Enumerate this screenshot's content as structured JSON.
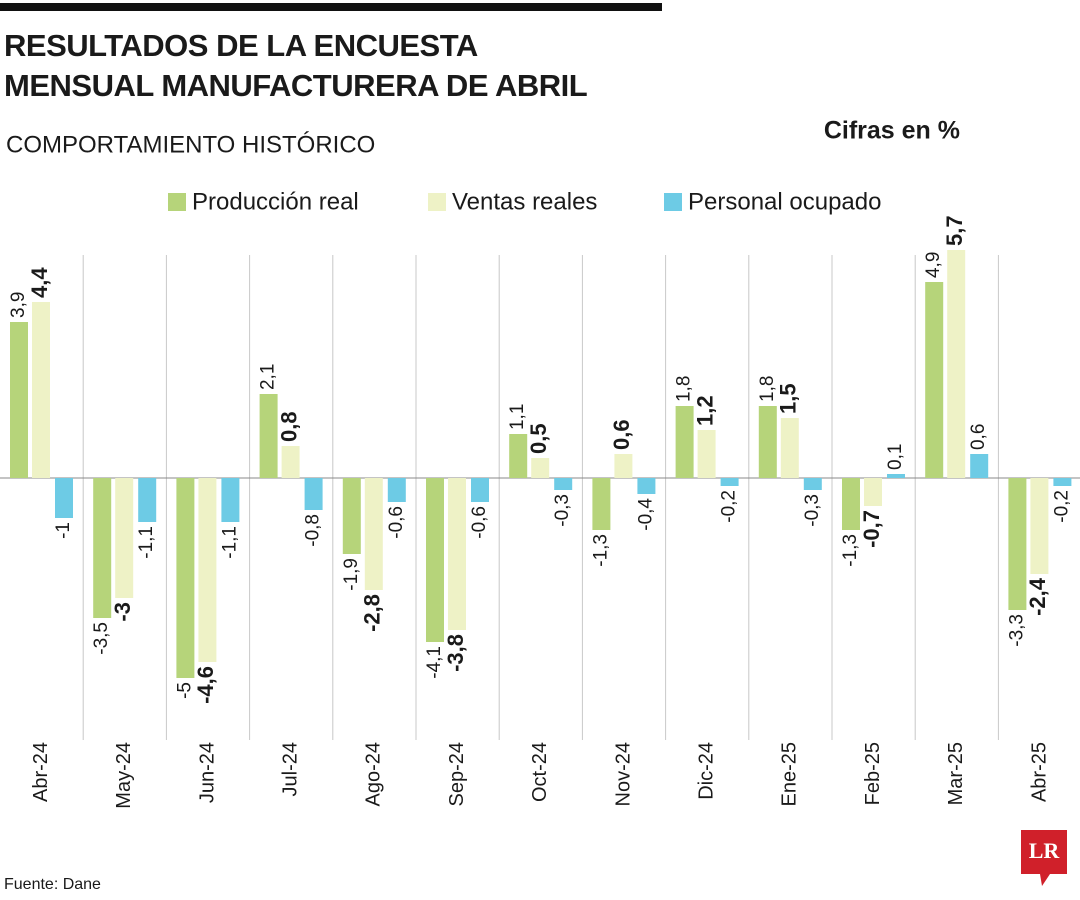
{
  "chart_data": {
    "type": "bar",
    "title": [
      "RESULTADOS DE LA ENCUESTA",
      "MENSUAL MANUFACTURERA DE ABRIL"
    ],
    "subtitle": "COMPORTAMIENTO HISTÓRICO",
    "unit_note": "Cifras en %",
    "source": "Fuente: Dane",
    "logo": "LR",
    "categories": [
      "Abr-24",
      "May-24",
      "Jun-24",
      "Jul-24",
      "Ago-24",
      "Sep-24",
      "Oct-24",
      "Nov-24",
      "Dic-24",
      "Ene-25",
      "Feb-25",
      "Mar-25",
      "Abr-25"
    ],
    "series": [
      {
        "name": "Producción real",
        "color": "#b6d47a",
        "values": [
          3.9,
          -3.5,
          -5,
          2.1,
          -1.9,
          -4.1,
          1.1,
          -1.3,
          1.8,
          1.8,
          -1.3,
          4.9,
          -3.3
        ],
        "value_labels": [
          "3,9",
          "-3,5",
          "-5",
          "2,1",
          "-1,9",
          "-4,1",
          "1,1",
          "-1,3",
          "1,8",
          "1,8",
          "-1,3",
          "4,9",
          "-3,3"
        ]
      },
      {
        "name": "Ventas reales",
        "color": "#eef2c6",
        "values": [
          4.4,
          -3,
          -4.6,
          0.8,
          -2.8,
          -3.8,
          0.5,
          0.6,
          1.2,
          1.5,
          -0.7,
          5.7,
          -2.4
        ],
        "value_labels": [
          "4,4",
          "-3",
          "-4,6",
          "0,8",
          "-2,8",
          "-3,8",
          "0,5",
          "0,6",
          "1,2",
          "1,5",
          "-0,7",
          "5,7",
          "-2,4"
        ]
      },
      {
        "name": "Personal ocupado",
        "color": "#6dcbe5",
        "values": [
          -1,
          -1.1,
          -1.1,
          -0.8,
          -0.6,
          -0.6,
          -0.3,
          -0.4,
          -0.2,
          -0.3,
          0.1,
          0.6,
          -0.2
        ],
        "value_labels": [
          "-1",
          "-1,1",
          "-1,1",
          "-0,8",
          "-0,6",
          "-0,6",
          "-0,3",
          "-0,4",
          "-0,2",
          "-0,3",
          "0,1",
          "0,6",
          "-0,2"
        ]
      }
    ]
  }
}
